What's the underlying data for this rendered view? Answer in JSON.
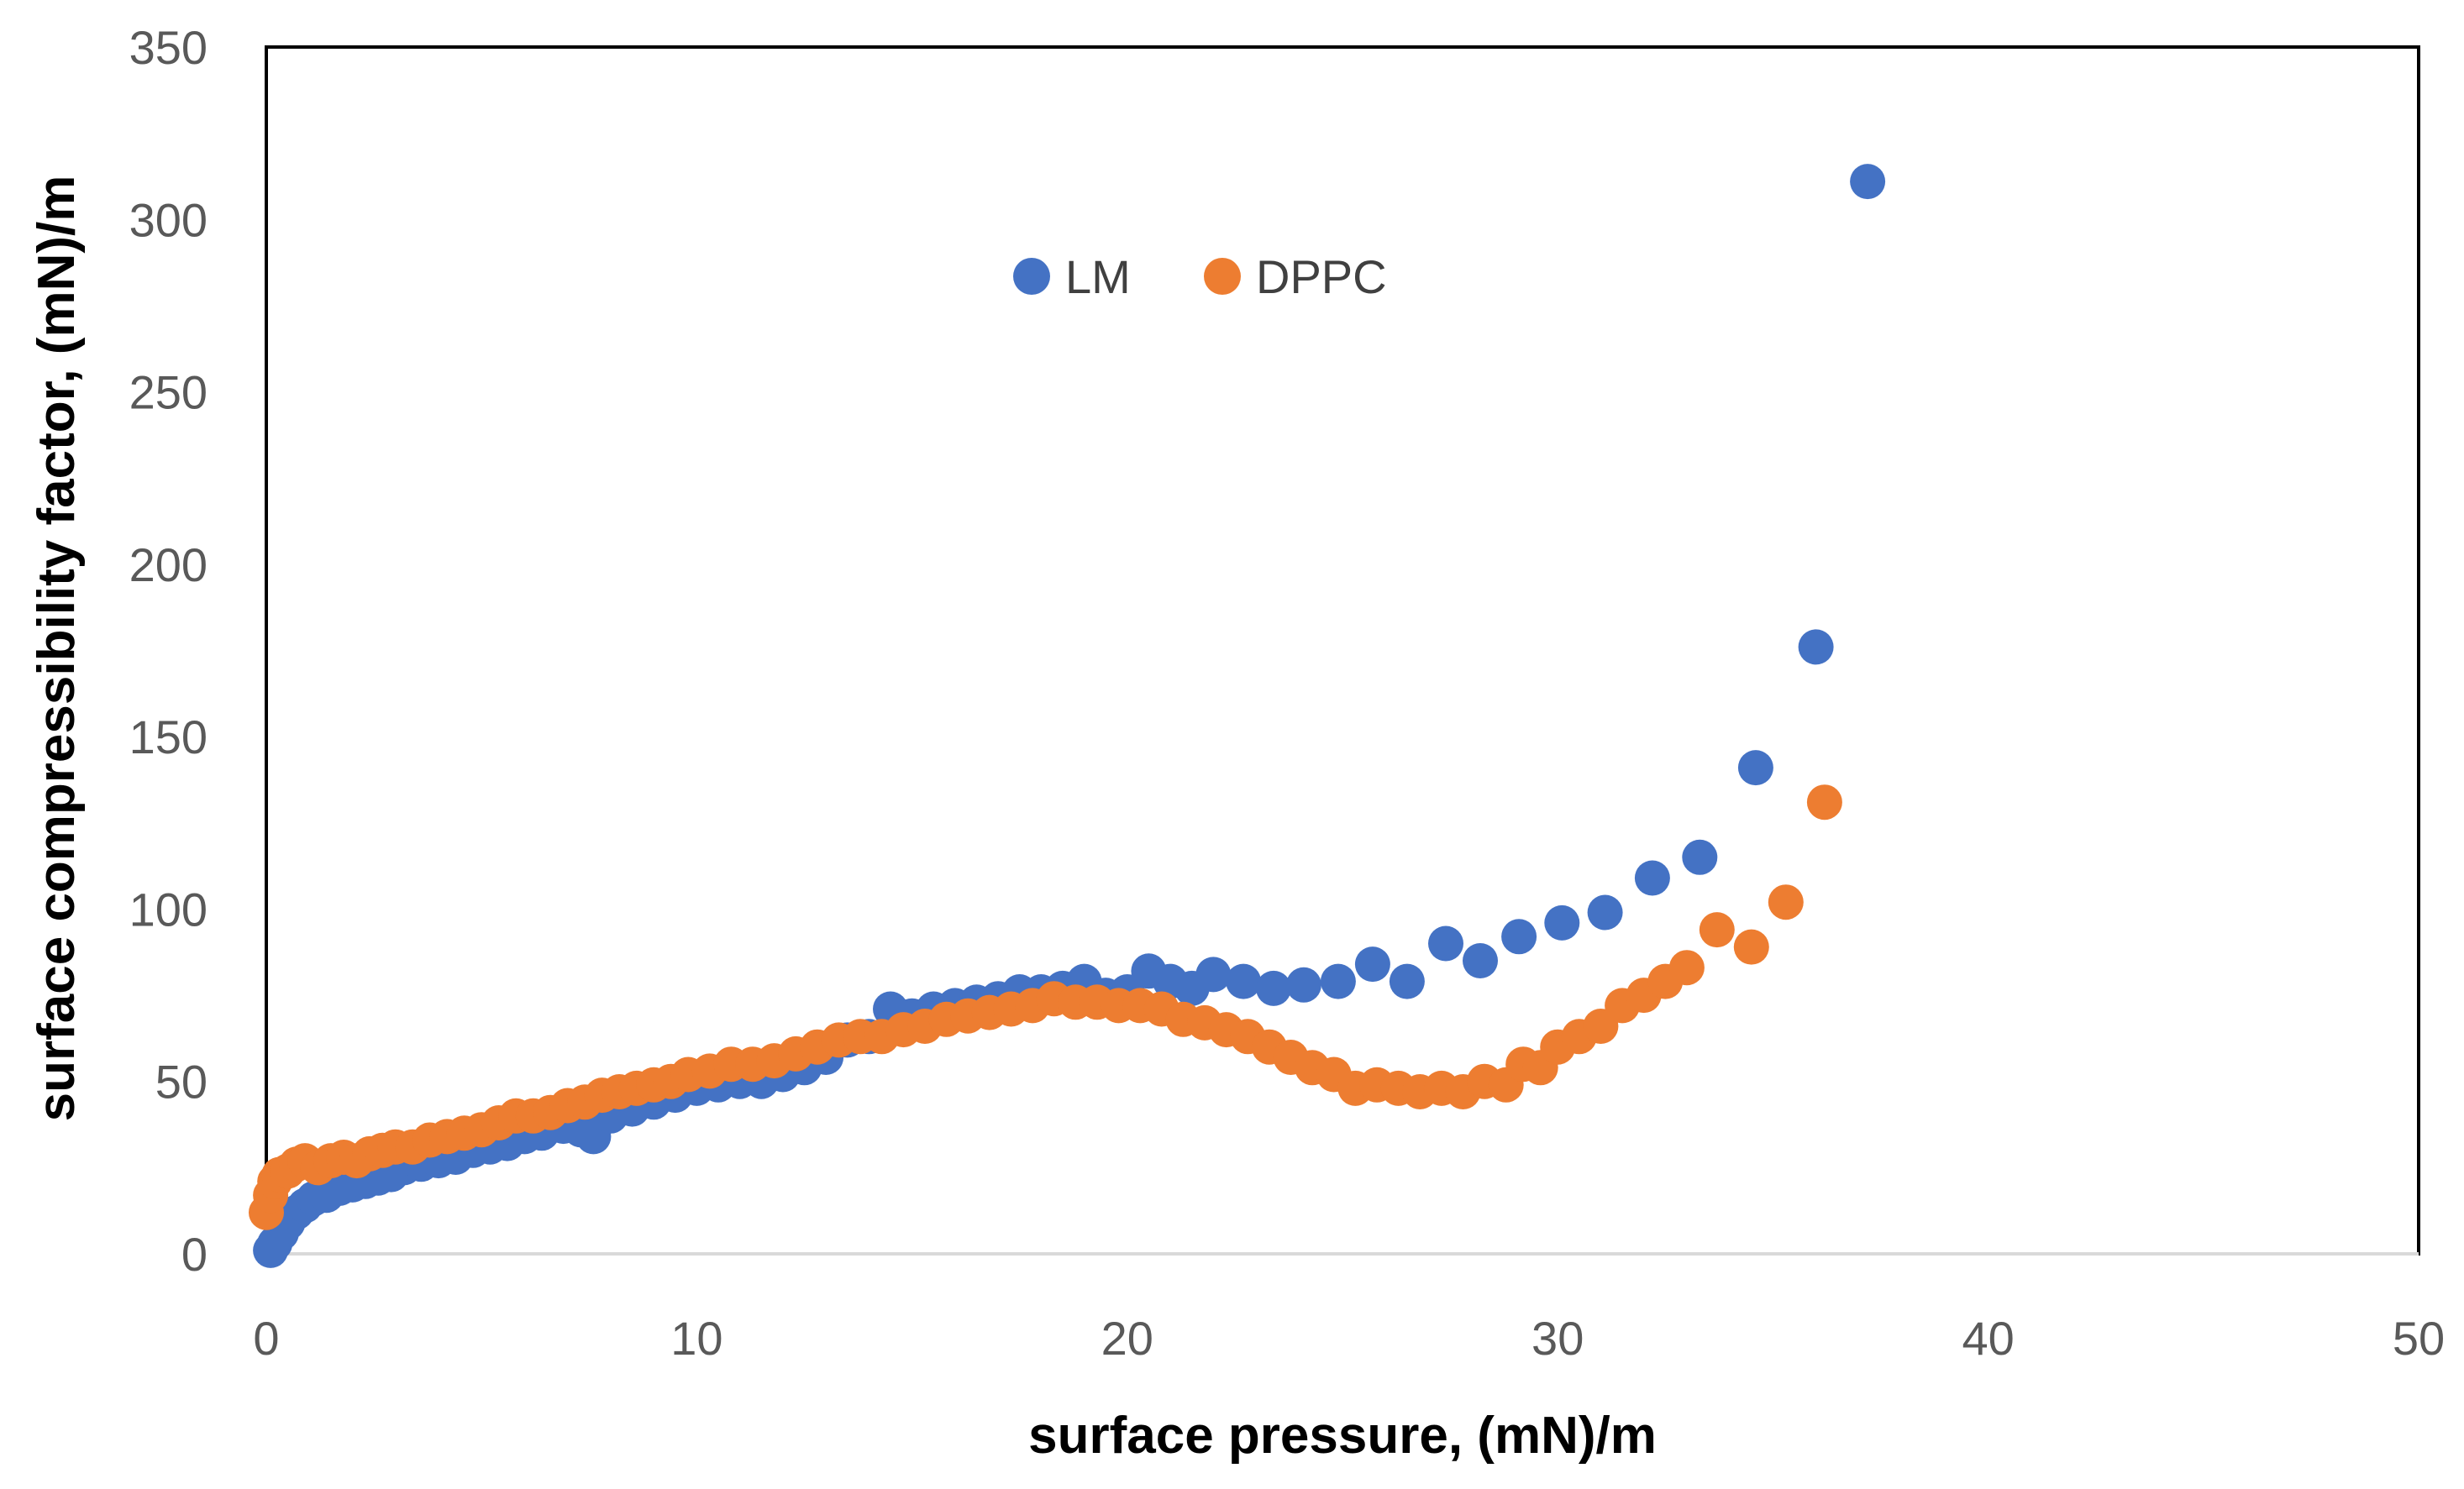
{
  "chart_data": {
    "type": "scatter",
    "title": "",
    "xlabel": "surface pressure, (mN)/m",
    "ylabel": "surface compressibility factor, (mN)/m",
    "xlim": [
      0,
      50
    ],
    "ylim": [
      0,
      350
    ],
    "xticks": [
      0,
      10,
      20,
      30,
      40,
      50
    ],
    "yticks": [
      0,
      50,
      100,
      150,
      200,
      250,
      300,
      350
    ],
    "grid": false,
    "legend": "upper-center",
    "series": [
      {
        "name": "LM",
        "color": "#4472C4",
        "points": [
          [
            0.1,
            1
          ],
          [
            0.2,
            3
          ],
          [
            0.35,
            6
          ],
          [
            0.5,
            9
          ],
          [
            0.7,
            12
          ],
          [
            0.9,
            14
          ],
          [
            1.1,
            16
          ],
          [
            1.4,
            17
          ],
          [
            1.7,
            19
          ],
          [
            2.0,
            20
          ],
          [
            2.3,
            21
          ],
          [
            2.6,
            22
          ],
          [
            2.9,
            23
          ],
          [
            3.2,
            25
          ],
          [
            3.6,
            26
          ],
          [
            4.0,
            27
          ],
          [
            4.4,
            28
          ],
          [
            4.8,
            30
          ],
          [
            5.2,
            31
          ],
          [
            5.6,
            32
          ],
          [
            6.0,
            34
          ],
          [
            6.4,
            35
          ],
          [
            6.9,
            37
          ],
          [
            7.3,
            36
          ],
          [
            7.6,
            34
          ],
          [
            8.0,
            40
          ],
          [
            8.5,
            42
          ],
          [
            9.0,
            44
          ],
          [
            9.5,
            46
          ],
          [
            10.0,
            48
          ],
          [
            10.5,
            49
          ],
          [
            11.0,
            50
          ],
          [
            11.5,
            50
          ],
          [
            12.0,
            52
          ],
          [
            12.5,
            54
          ],
          [
            13.0,
            57
          ],
          [
            13.5,
            62
          ],
          [
            14.0,
            63
          ],
          [
            14.5,
            71
          ],
          [
            15.0,
            69
          ],
          [
            15.5,
            71
          ],
          [
            16.0,
            72
          ],
          [
            16.5,
            73
          ],
          [
            17.0,
            74
          ],
          [
            17.5,
            76
          ],
          [
            18.0,
            76
          ],
          [
            18.5,
            77
          ],
          [
            19.0,
            79
          ],
          [
            19.5,
            75
          ],
          [
            20.0,
            76
          ],
          [
            20.5,
            82
          ],
          [
            21.0,
            79
          ],
          [
            21.5,
            77
          ],
          [
            22.0,
            81
          ],
          [
            22.7,
            79
          ],
          [
            23.4,
            77
          ],
          [
            24.1,
            78
          ],
          [
            24.9,
            79
          ],
          [
            25.7,
            84
          ],
          [
            26.5,
            79
          ],
          [
            27.4,
            90
          ],
          [
            28.2,
            85
          ],
          [
            29.1,
            92
          ],
          [
            30.1,
            96
          ],
          [
            31.1,
            99
          ],
          [
            32.2,
            109
          ],
          [
            33.3,
            115
          ],
          [
            34.6,
            141
          ],
          [
            36.0,
            176
          ],
          [
            37.2,
            311
          ]
        ]
      },
      {
        "name": "DPPC",
        "color": "#ED7D31",
        "points": [
          [
            0.0,
            12
          ],
          [
            0.1,
            17
          ],
          [
            0.2,
            21
          ],
          [
            0.3,
            23
          ],
          [
            0.5,
            24
          ],
          [
            0.7,
            26
          ],
          [
            0.9,
            27
          ],
          [
            1.2,
            25
          ],
          [
            1.5,
            27
          ],
          [
            1.8,
            28
          ],
          [
            2.1,
            27
          ],
          [
            2.4,
            29
          ],
          [
            2.7,
            30
          ],
          [
            3.0,
            31
          ],
          [
            3.4,
            31
          ],
          [
            3.8,
            33
          ],
          [
            4.2,
            34
          ],
          [
            4.6,
            35
          ],
          [
            5.0,
            36
          ],
          [
            5.4,
            38
          ],
          [
            5.8,
            40
          ],
          [
            6.2,
            40
          ],
          [
            6.6,
            41
          ],
          [
            7.0,
            43
          ],
          [
            7.4,
            44
          ],
          [
            7.8,
            46
          ],
          [
            8.2,
            47
          ],
          [
            8.6,
            48
          ],
          [
            9.0,
            49
          ],
          [
            9.4,
            50
          ],
          [
            9.8,
            52
          ],
          [
            10.3,
            53
          ],
          [
            10.8,
            55
          ],
          [
            11.3,
            55
          ],
          [
            11.8,
            56
          ],
          [
            12.3,
            58
          ],
          [
            12.8,
            60
          ],
          [
            13.3,
            62
          ],
          [
            13.8,
            63
          ],
          [
            14.3,
            63
          ],
          [
            14.8,
            65
          ],
          [
            15.3,
            66
          ],
          [
            15.8,
            68
          ],
          [
            16.3,
            69
          ],
          [
            16.8,
            70
          ],
          [
            17.3,
            71
          ],
          [
            17.8,
            72
          ],
          [
            18.3,
            74
          ],
          [
            18.8,
            73
          ],
          [
            19.3,
            73
          ],
          [
            19.8,
            72
          ],
          [
            20.3,
            72
          ],
          [
            20.8,
            71
          ],
          [
            21.3,
            68
          ],
          [
            21.8,
            67
          ],
          [
            22.3,
            65
          ],
          [
            22.8,
            63
          ],
          [
            23.3,
            60
          ],
          [
            23.8,
            57
          ],
          [
            24.3,
            54
          ],
          [
            24.8,
            52
          ],
          [
            25.3,
            48
          ],
          [
            25.8,
            49
          ],
          [
            26.3,
            48
          ],
          [
            26.8,
            47
          ],
          [
            27.3,
            48
          ],
          [
            27.8,
            47
          ],
          [
            28.3,
            50
          ],
          [
            28.8,
            49
          ],
          [
            29.2,
            55
          ],
          [
            29.6,
            54
          ],
          [
            30.0,
            60
          ],
          [
            30.5,
            63
          ],
          [
            31.0,
            66
          ],
          [
            31.5,
            72
          ],
          [
            32.0,
            75
          ],
          [
            32.5,
            79
          ],
          [
            33.0,
            83
          ],
          [
            33.7,
            94
          ],
          [
            34.5,
            89
          ],
          [
            35.3,
            102
          ],
          [
            36.2,
            131
          ]
        ]
      }
    ]
  }
}
